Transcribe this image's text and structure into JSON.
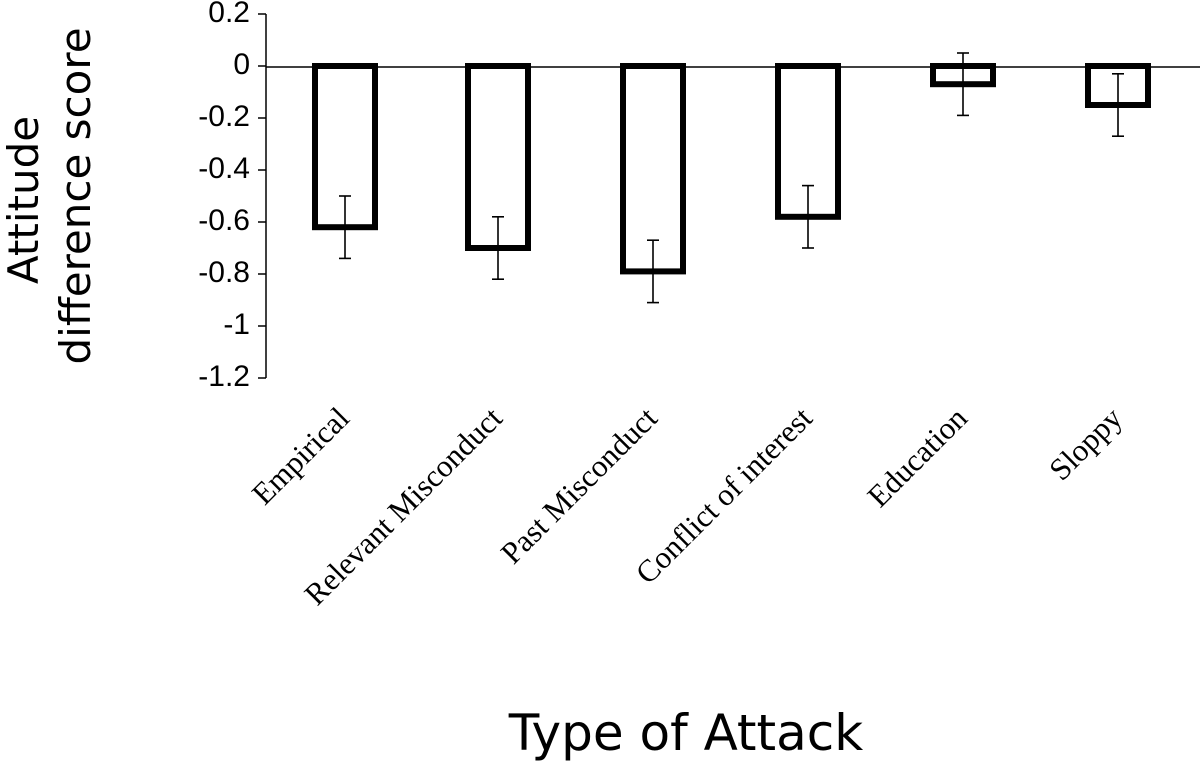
{
  "chart_data": {
    "type": "bar",
    "categories": [
      "Empirical",
      "Relevant Misconduct",
      "Past Misconduct",
      "Conflict of interest",
      "Education",
      "Sloppy"
    ],
    "series": [
      {
        "values": [
          -0.62,
          -0.7,
          -0.79,
          -0.58,
          -0.07,
          -0.15
        ],
        "error": [
          0.12,
          0.12,
          0.12,
          0.12,
          0.12,
          0.12
        ]
      }
    ],
    "ylim": [
      -1.2,
      0.2
    ],
    "yticks": [
      0.2,
      0,
      -0.2,
      -0.4,
      -0.6,
      -0.8,
      -1,
      -1.2
    ],
    "ytick_labels": [
      "0.2",
      "0",
      "-0.2",
      "-0.4",
      "-0.6",
      "-0.8",
      "-1",
      "-1.2"
    ],
    "ylabel_lines": [
      "Attitude",
      "difference score"
    ],
    "xlabel": "Type of Attack",
    "grid": false,
    "bar_fill": "#ffffff",
    "bar_stroke": "#000000"
  }
}
